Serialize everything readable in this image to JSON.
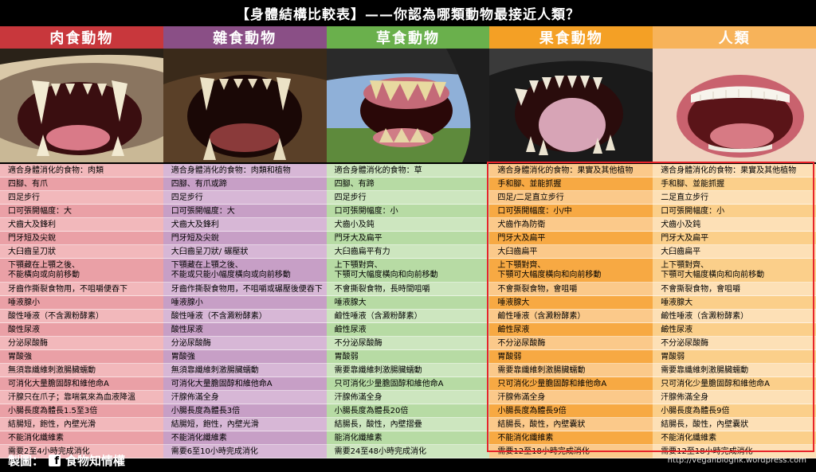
{
  "title": "【身體結構比較表】——你認為哪類動物最接近人類？",
  "colors": {
    "carnivore_head": "#c8373c",
    "omnivore_head": "#8a4f86",
    "herbivore_head": "#6ab04c",
    "frugivore_head": "#f4a025",
    "human_head": "#f7b35a",
    "highlight_frame": "#e8242a"
  },
  "columns": [
    {
      "name": "肉食動物",
      "photo": "tiger-teeth-photo",
      "rows": [
        "適合身體消化的食物：肉類",
        "四腳、有爪",
        "四足步行",
        "口可張開幅度：大",
        "犬齒大及鋒利",
        "門牙短及尖銳",
        "大臼齒呈刀狀",
        "下顎藏在上顎之後、\n不能橫向或向前移動",
        "牙齒作撕裂食物用，不咀嚼便吞下",
        "唾液腺小",
        "酸性唾液（不含澱粉酵素）",
        "酸性尿液",
        "分泌尿酸酶",
        "胃酸強",
        "無須靠纖維刺激腸臟蠕動",
        "可消化大量膽固醇和維他命A",
        "汗腺只在爪子；靠喘氣來為血液降溫",
        "小腸長度為體長1.5至3倍",
        "結腸短，飽性，內壁光滑",
        "不能消化纖維素",
        "需要2至4小時完成消化"
      ]
    },
    {
      "name": "雜食動物",
      "photo": "bear-teeth-photo",
      "rows": [
        "適合身體消化的食物：肉類和植物",
        "四腳、有爪或蹄",
        "四足步行",
        "口可張開幅度：大",
        "犬齒大及鋒利",
        "門牙短及尖銳",
        "大臼齒呈刀狀/ 碾壓狀",
        "下顎藏在上顎之後、\n不能或只能小幅度橫向或向前移動",
        "牙齒作撕裂食物用，不咀嚼或碾壓後便吞下",
        "唾液腺小",
        "酸性唾液（不含澱粉酵素）",
        "酸性尿液",
        "分泌尿酸酶",
        "胃酸強",
        "無須靠纖維刺激腸臟蠕動",
        "可消化大量膽固醇和維他命A",
        "汗腺佈滿全身",
        "小腸長度為體長3倍",
        "結腸短，飽性，內壁光滑",
        "不能消化纖維素",
        "需要6至10小時完成消化"
      ]
    },
    {
      "name": "草食動物",
      "photo": "horse-teeth-photo",
      "rows": [
        "適合身體消化的食物：草",
        "四腳、有蹄",
        "四足步行",
        "口可張開幅度：小",
        "犬齒小及鈍",
        "門牙大及扁平",
        "大臼齒扁平有力",
        "上下顎對齊、\n下顎可大幅度橫向和向前移動",
        "不會撕裂食物，長時間咀嚼",
        "唾液腺大",
        "鹼性唾液（含澱粉酵素）",
        "鹼性尿液",
        "不分泌尿酸酶",
        "胃酸弱",
        "需要靠纖維刺激腸臟蠕動",
        "只可消化少量膽固醇和維他命A",
        "汗腺佈滿全身",
        "小腸長度為體長20倍",
        "結腸長，酸性，內壁摺疊",
        "能消化纖維素",
        "需要24至48小時完成消化"
      ]
    },
    {
      "name": "果食動物",
      "photo": "ape-teeth-photo",
      "rows": [
        "適合身體消化的食物：果實及其他植物",
        "手和腳、並能抓握",
        "四足/二足直立步行",
        "口可張開幅度：小/中",
        "犬齒作為防衛",
        "門牙大及扁平",
        "大臼齒扁平",
        "上下顎對齊、\n下顎可大幅度橫向和向前移動",
        "不會撕裂食物，會咀嚼",
        "唾液腺大",
        "鹼性唾液（含澱粉酵素）",
        "鹼性尿液",
        "不分泌尿酸酶",
        "胃酸弱",
        "需要靠纖維刺激腸臟蠕動",
        "只可消化少量膽固醇和維他命A",
        "汗腺佈滿全身",
        "小腸長度為體長9倍",
        "結腸長，酸性，內壁囊狀",
        "不能消化纖維素",
        "需要12至18小時完成消化"
      ]
    },
    {
      "name": "人類",
      "photo": "human-teeth-photo",
      "rows": [
        "適合身體消化的食物：果實及其他植物",
        "手和腳、並能抓握",
        "二足直立步行",
        "口可張開幅度：小",
        "犬齒小及鈍",
        "門牙大及扁平",
        "大臼齒扁平",
        "上下顎對齊、\n下顎可大幅度橫向和向前移動",
        "不會撕裂食物，會咀嚼",
        "唾液腺大",
        "鹼性唾液（含澱粉酵素）",
        "鹼性尿液",
        "不分泌尿酸酶",
        "胃酸弱",
        "需要靠纖維刺激腸臟蠕動",
        "只可消化少量膽固醇和維他命A",
        "汗腺佈滿全身",
        "小腸長度為體長9倍",
        "結腸長，酸性，內壁囊狀",
        "不能消化纖維素",
        "需要12至18小時完成消化"
      ]
    }
  ],
  "footer": {
    "credit": "製圖：",
    "fb_icon": "f",
    "credit_name": "食物知情權",
    "url": "http://veganbloghk.wordpress.com"
  }
}
